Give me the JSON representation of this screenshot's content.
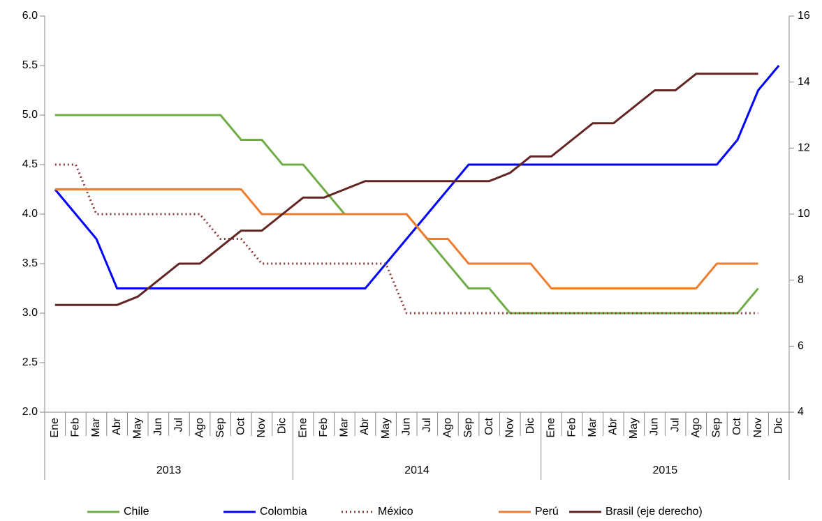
{
  "chart_data": {
    "type": "line",
    "categories": [
      "Ene",
      "Feb",
      "Mar",
      "Abr",
      "May",
      "Jun",
      "Jul",
      "Ago",
      "Sep",
      "Oct",
      "Nov",
      "Dic",
      "Ene",
      "Feb",
      "Mar",
      "Abr",
      "May",
      "Jun",
      "Jul",
      "Ago",
      "Sep",
      "Oct",
      "Nov",
      "Dic",
      "Ene",
      "Feb",
      "Mar",
      "Abr",
      "May",
      "Jun",
      "Jul",
      "Ago",
      "Sep",
      "Oct",
      "Nov",
      "Dic"
    ],
    "groups": [
      "2013",
      "2014",
      "2015"
    ],
    "ylim": [
      2.0,
      6.0
    ],
    "yticks": [
      {
        "value": 2.0,
        "label": "2.0"
      },
      {
        "value": 2.5,
        "label": "2.5"
      },
      {
        "value": 3.0,
        "label": "3.0"
      },
      {
        "value": 3.5,
        "label": "3.5"
      },
      {
        "value": 4.0,
        "label": "4.0"
      },
      {
        "value": 4.5,
        "label": "4.5"
      },
      {
        "value": 5.0,
        "label": "5.0"
      },
      {
        "value": 5.5,
        "label": "5.5"
      },
      {
        "value": 6.0,
        "label": "6.0"
      }
    ],
    "y2lim": [
      4,
      16
    ],
    "y2ticks": [
      4,
      6,
      8,
      10,
      12,
      14,
      16
    ],
    "legend": "bottom",
    "series": [
      {
        "name": "Chile",
        "color": "#70ad47",
        "style": "solid",
        "values": [
          5.0,
          5.0,
          5.0,
          5.0,
          5.0,
          5.0,
          5.0,
          5.0,
          5.0,
          4.75,
          4.75,
          4.5,
          4.5,
          4.25,
          4.0,
          4.0,
          4.0,
          4.0,
          3.75,
          3.5,
          3.25,
          3.25,
          3.0,
          3.0,
          3.0,
          3.0,
          3.0,
          3.0,
          3.0,
          3.0,
          3.0,
          3.0,
          3.0,
          3.0,
          3.25,
          null
        ]
      },
      {
        "name": "Colombia",
        "color": "#0000ff",
        "style": "solid",
        "values": [
          4.25,
          4.0,
          3.75,
          3.25,
          3.25,
          3.25,
          3.25,
          3.25,
          3.25,
          3.25,
          3.25,
          3.25,
          3.25,
          3.25,
          3.25,
          3.25,
          3.5,
          3.75,
          4.0,
          4.25,
          4.5,
          4.5,
          4.5,
          4.5,
          4.5,
          4.5,
          4.5,
          4.5,
          4.5,
          4.5,
          4.5,
          4.5,
          4.5,
          4.75,
          5.25,
          5.5
        ]
      },
      {
        "name": "México",
        "color": "#843c3c",
        "style": "dotted",
        "values": [
          4.5,
          4.5,
          4.0,
          4.0,
          4.0,
          4.0,
          4.0,
          4.0,
          3.75,
          3.75,
          3.5,
          3.5,
          3.5,
          3.5,
          3.5,
          3.5,
          3.5,
          3.0,
          3.0,
          3.0,
          3.0,
          3.0,
          3.0,
          3.0,
          3.0,
          3.0,
          3.0,
          3.0,
          3.0,
          3.0,
          3.0,
          3.0,
          3.0,
          3.0,
          3.0,
          null
        ]
      },
      {
        "name": "Perú",
        "color": "#ed7d31",
        "style": "solid",
        "values": [
          4.25,
          4.25,
          4.25,
          4.25,
          4.25,
          4.25,
          4.25,
          4.25,
          4.25,
          4.25,
          4.0,
          4.0,
          4.0,
          4.0,
          4.0,
          4.0,
          4.0,
          4.0,
          3.75,
          3.75,
          3.5,
          3.5,
          3.5,
          3.5,
          3.25,
          3.25,
          3.25,
          3.25,
          3.25,
          3.25,
          3.25,
          3.25,
          3.5,
          3.5,
          3.5,
          null
        ]
      },
      {
        "name": "Brasil (eje derecho)",
        "color": "#632523",
        "style": "solid",
        "axis": "y2",
        "values": [
          7.25,
          7.25,
          7.25,
          7.25,
          7.5,
          8.0,
          8.5,
          8.5,
          9.0,
          9.5,
          9.5,
          10.0,
          10.5,
          10.5,
          10.75,
          11.0,
          11.0,
          11.0,
          11.0,
          11.0,
          11.0,
          11.0,
          11.25,
          11.75,
          11.75,
          12.25,
          12.75,
          12.75,
          13.25,
          13.75,
          13.75,
          14.25,
          14.25,
          14.25,
          14.25,
          null
        ]
      }
    ]
  }
}
